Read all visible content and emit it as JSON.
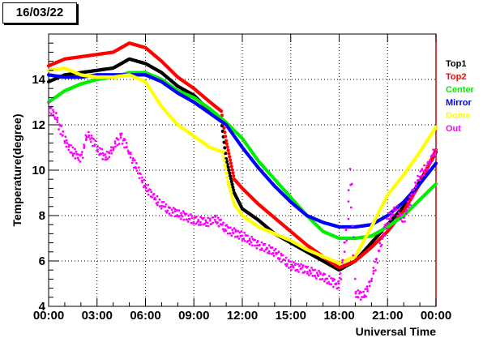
{
  "date_label": "16/03/22",
  "chart_data": {
    "type": "scatter",
    "xlabel": "Universal Time",
    "ylabel": "Temperature(degree)",
    "xlim": [
      0,
      24
    ],
    "ylim": [
      4,
      16
    ],
    "x_ticks": [
      "00:00",
      "03:00",
      "06:00",
      "09:00",
      "12:00",
      "15:00",
      "18:00",
      "21:00",
      "00:00"
    ],
    "y_ticks": [
      "4",
      "6",
      "8",
      "10",
      "12",
      "14"
    ],
    "grid": true,
    "legend_position": "right",
    "series": [
      {
        "name": "Top1",
        "color": "#000000",
        "points": [
          [
            0,
            13.9
          ],
          [
            1,
            14.2
          ],
          [
            2,
            14.3
          ],
          [
            3,
            14.4
          ],
          [
            4,
            14.5
          ],
          [
            5,
            14.9
          ],
          [
            6,
            14.7
          ],
          [
            7,
            14.3
          ],
          [
            8,
            13.7
          ],
          [
            9,
            13.3
          ],
          [
            10,
            12.6
          ],
          [
            10.7,
            12.2
          ],
          [
            11,
            10.5
          ],
          [
            11.5,
            9.0
          ],
          [
            12,
            8.3
          ],
          [
            13,
            7.8
          ],
          [
            14,
            7.2
          ],
          [
            15,
            6.8
          ],
          [
            16,
            6.4
          ],
          [
            17,
            6.0
          ],
          [
            18,
            5.6
          ],
          [
            19,
            6.0
          ],
          [
            20,
            6.8
          ],
          [
            21,
            7.6
          ],
          [
            22,
            8.4
          ],
          [
            23,
            9.5
          ],
          [
            24,
            10.8
          ]
        ]
      },
      {
        "name": "Top2",
        "color": "#ff0000",
        "points": [
          [
            0,
            14.6
          ],
          [
            1,
            14.9
          ],
          [
            2,
            15.0
          ],
          [
            3,
            15.1
          ],
          [
            4,
            15.2
          ],
          [
            5,
            15.6
          ],
          [
            6,
            15.4
          ],
          [
            7,
            14.8
          ],
          [
            8,
            14.1
          ],
          [
            9,
            13.6
          ],
          [
            10,
            13.0
          ],
          [
            10.7,
            12.6
          ],
          [
            11,
            11.3
          ],
          [
            11.5,
            9.6
          ],
          [
            12,
            9.2
          ],
          [
            13,
            8.5
          ],
          [
            14,
            7.9
          ],
          [
            15,
            7.3
          ],
          [
            16,
            6.7
          ],
          [
            17,
            6.2
          ],
          [
            18,
            5.7
          ],
          [
            19,
            6.0
          ],
          [
            20,
            6.6
          ],
          [
            21,
            7.3
          ],
          [
            22,
            8.2
          ],
          [
            23,
            9.4
          ],
          [
            24,
            10.9
          ]
        ]
      },
      {
        "name": "Center",
        "color": "#00ee00",
        "points": [
          [
            0,
            13.0
          ],
          [
            1,
            13.5
          ],
          [
            2,
            13.8
          ],
          [
            3,
            14.0
          ],
          [
            4,
            14.1
          ],
          [
            5,
            14.3
          ],
          [
            6,
            14.3
          ],
          [
            7,
            14.0
          ],
          [
            8,
            13.5
          ],
          [
            9,
            13.2
          ],
          [
            10,
            12.7
          ],
          [
            11,
            12.1
          ],
          [
            12,
            11.4
          ],
          [
            13,
            10.4
          ],
          [
            14,
            9.6
          ],
          [
            15,
            8.8
          ],
          [
            16,
            8.0
          ],
          [
            17,
            7.3
          ],
          [
            18,
            7.0
          ],
          [
            19,
            7.0
          ],
          [
            20,
            7.1
          ],
          [
            21,
            7.5
          ],
          [
            22,
            8.0
          ],
          [
            23,
            8.7
          ],
          [
            24,
            9.4
          ]
        ]
      },
      {
        "name": "Mirror",
        "color": "#0000ff",
        "points": [
          [
            0,
            14.2
          ],
          [
            1,
            14.1
          ],
          [
            2,
            14.1
          ],
          [
            3,
            14.2
          ],
          [
            4,
            14.2
          ],
          [
            5,
            14.2
          ],
          [
            6,
            14.2
          ],
          [
            7,
            13.9
          ],
          [
            8,
            13.4
          ],
          [
            9,
            13.0
          ],
          [
            10,
            12.5
          ],
          [
            11,
            12.0
          ],
          [
            12,
            11.0
          ],
          [
            13,
            10.1
          ],
          [
            14,
            9.3
          ],
          [
            15,
            8.6
          ],
          [
            16,
            8.0
          ],
          [
            17,
            7.7
          ],
          [
            18,
            7.5
          ],
          [
            19,
            7.5
          ],
          [
            20,
            7.6
          ],
          [
            21,
            8.0
          ],
          [
            22,
            8.6
          ],
          [
            23,
            9.4
          ],
          [
            24,
            10.3
          ]
        ]
      },
      {
        "name": "Dome",
        "color": "#ffff00",
        "points": [
          [
            0,
            14.4
          ],
          [
            1,
            14.5
          ],
          [
            2,
            14.2
          ],
          [
            3,
            14.1
          ],
          [
            4,
            14.1
          ],
          [
            5,
            14.2
          ],
          [
            6,
            13.9
          ],
          [
            7,
            12.8
          ],
          [
            8,
            12.0
          ],
          [
            9,
            11.5
          ],
          [
            10,
            11.0
          ],
          [
            10.8,
            10.8
          ],
          [
            11.1,
            9.5
          ],
          [
            11.5,
            8.5
          ],
          [
            12,
            8.0
          ],
          [
            13,
            7.5
          ],
          [
            14,
            7.2
          ],
          [
            15,
            6.9
          ],
          [
            16,
            6.5
          ],
          [
            17,
            6.2
          ],
          [
            18,
            5.9
          ],
          [
            19,
            6.2
          ],
          [
            20,
            7.5
          ],
          [
            21,
            8.9
          ],
          [
            22,
            9.8
          ],
          [
            23,
            10.8
          ],
          [
            24,
            11.9
          ]
        ]
      },
      {
        "name": "Out",
        "color": "#ff00ff",
        "points": [
          [
            0,
            12.8
          ],
          [
            0.5,
            12.3
          ],
          [
            1,
            11.3
          ],
          [
            1.5,
            10.8
          ],
          [
            2,
            10.5
          ],
          [
            2.4,
            11.6
          ],
          [
            2.7,
            11.3
          ],
          [
            3,
            11.0
          ],
          [
            3.5,
            10.5
          ],
          [
            4,
            11.0
          ],
          [
            4.5,
            11.5
          ],
          [
            5,
            10.8
          ],
          [
            5.5,
            10.0
          ],
          [
            6,
            9.3
          ],
          [
            6.5,
            8.8
          ],
          [
            7,
            8.5
          ],
          [
            7.5,
            8.2
          ],
          [
            8,
            8.1
          ],
          [
            9,
            7.8
          ],
          [
            10,
            7.7
          ],
          [
            10.3,
            7.9
          ],
          [
            11,
            7.4
          ],
          [
            12,
            7.1
          ],
          [
            13,
            6.7
          ],
          [
            14,
            6.4
          ],
          [
            15,
            5.8
          ],
          [
            16,
            5.6
          ],
          [
            17,
            5.3
          ],
          [
            17.5,
            5.1
          ],
          [
            18,
            4.9
          ],
          [
            18.5,
            7.5
          ],
          [
            18.7,
            10.0
          ],
          [
            19,
            4.6
          ],
          [
            19.5,
            4.4
          ],
          [
            20,
            5.2
          ],
          [
            20.5,
            6.5
          ],
          [
            21,
            7.8
          ],
          [
            21.5,
            8.3
          ],
          [
            22,
            7.8
          ],
          [
            22.5,
            8.9
          ],
          [
            23,
            9.8
          ],
          [
            23.5,
            10.2
          ],
          [
            24,
            10.9
          ]
        ]
      }
    ]
  }
}
